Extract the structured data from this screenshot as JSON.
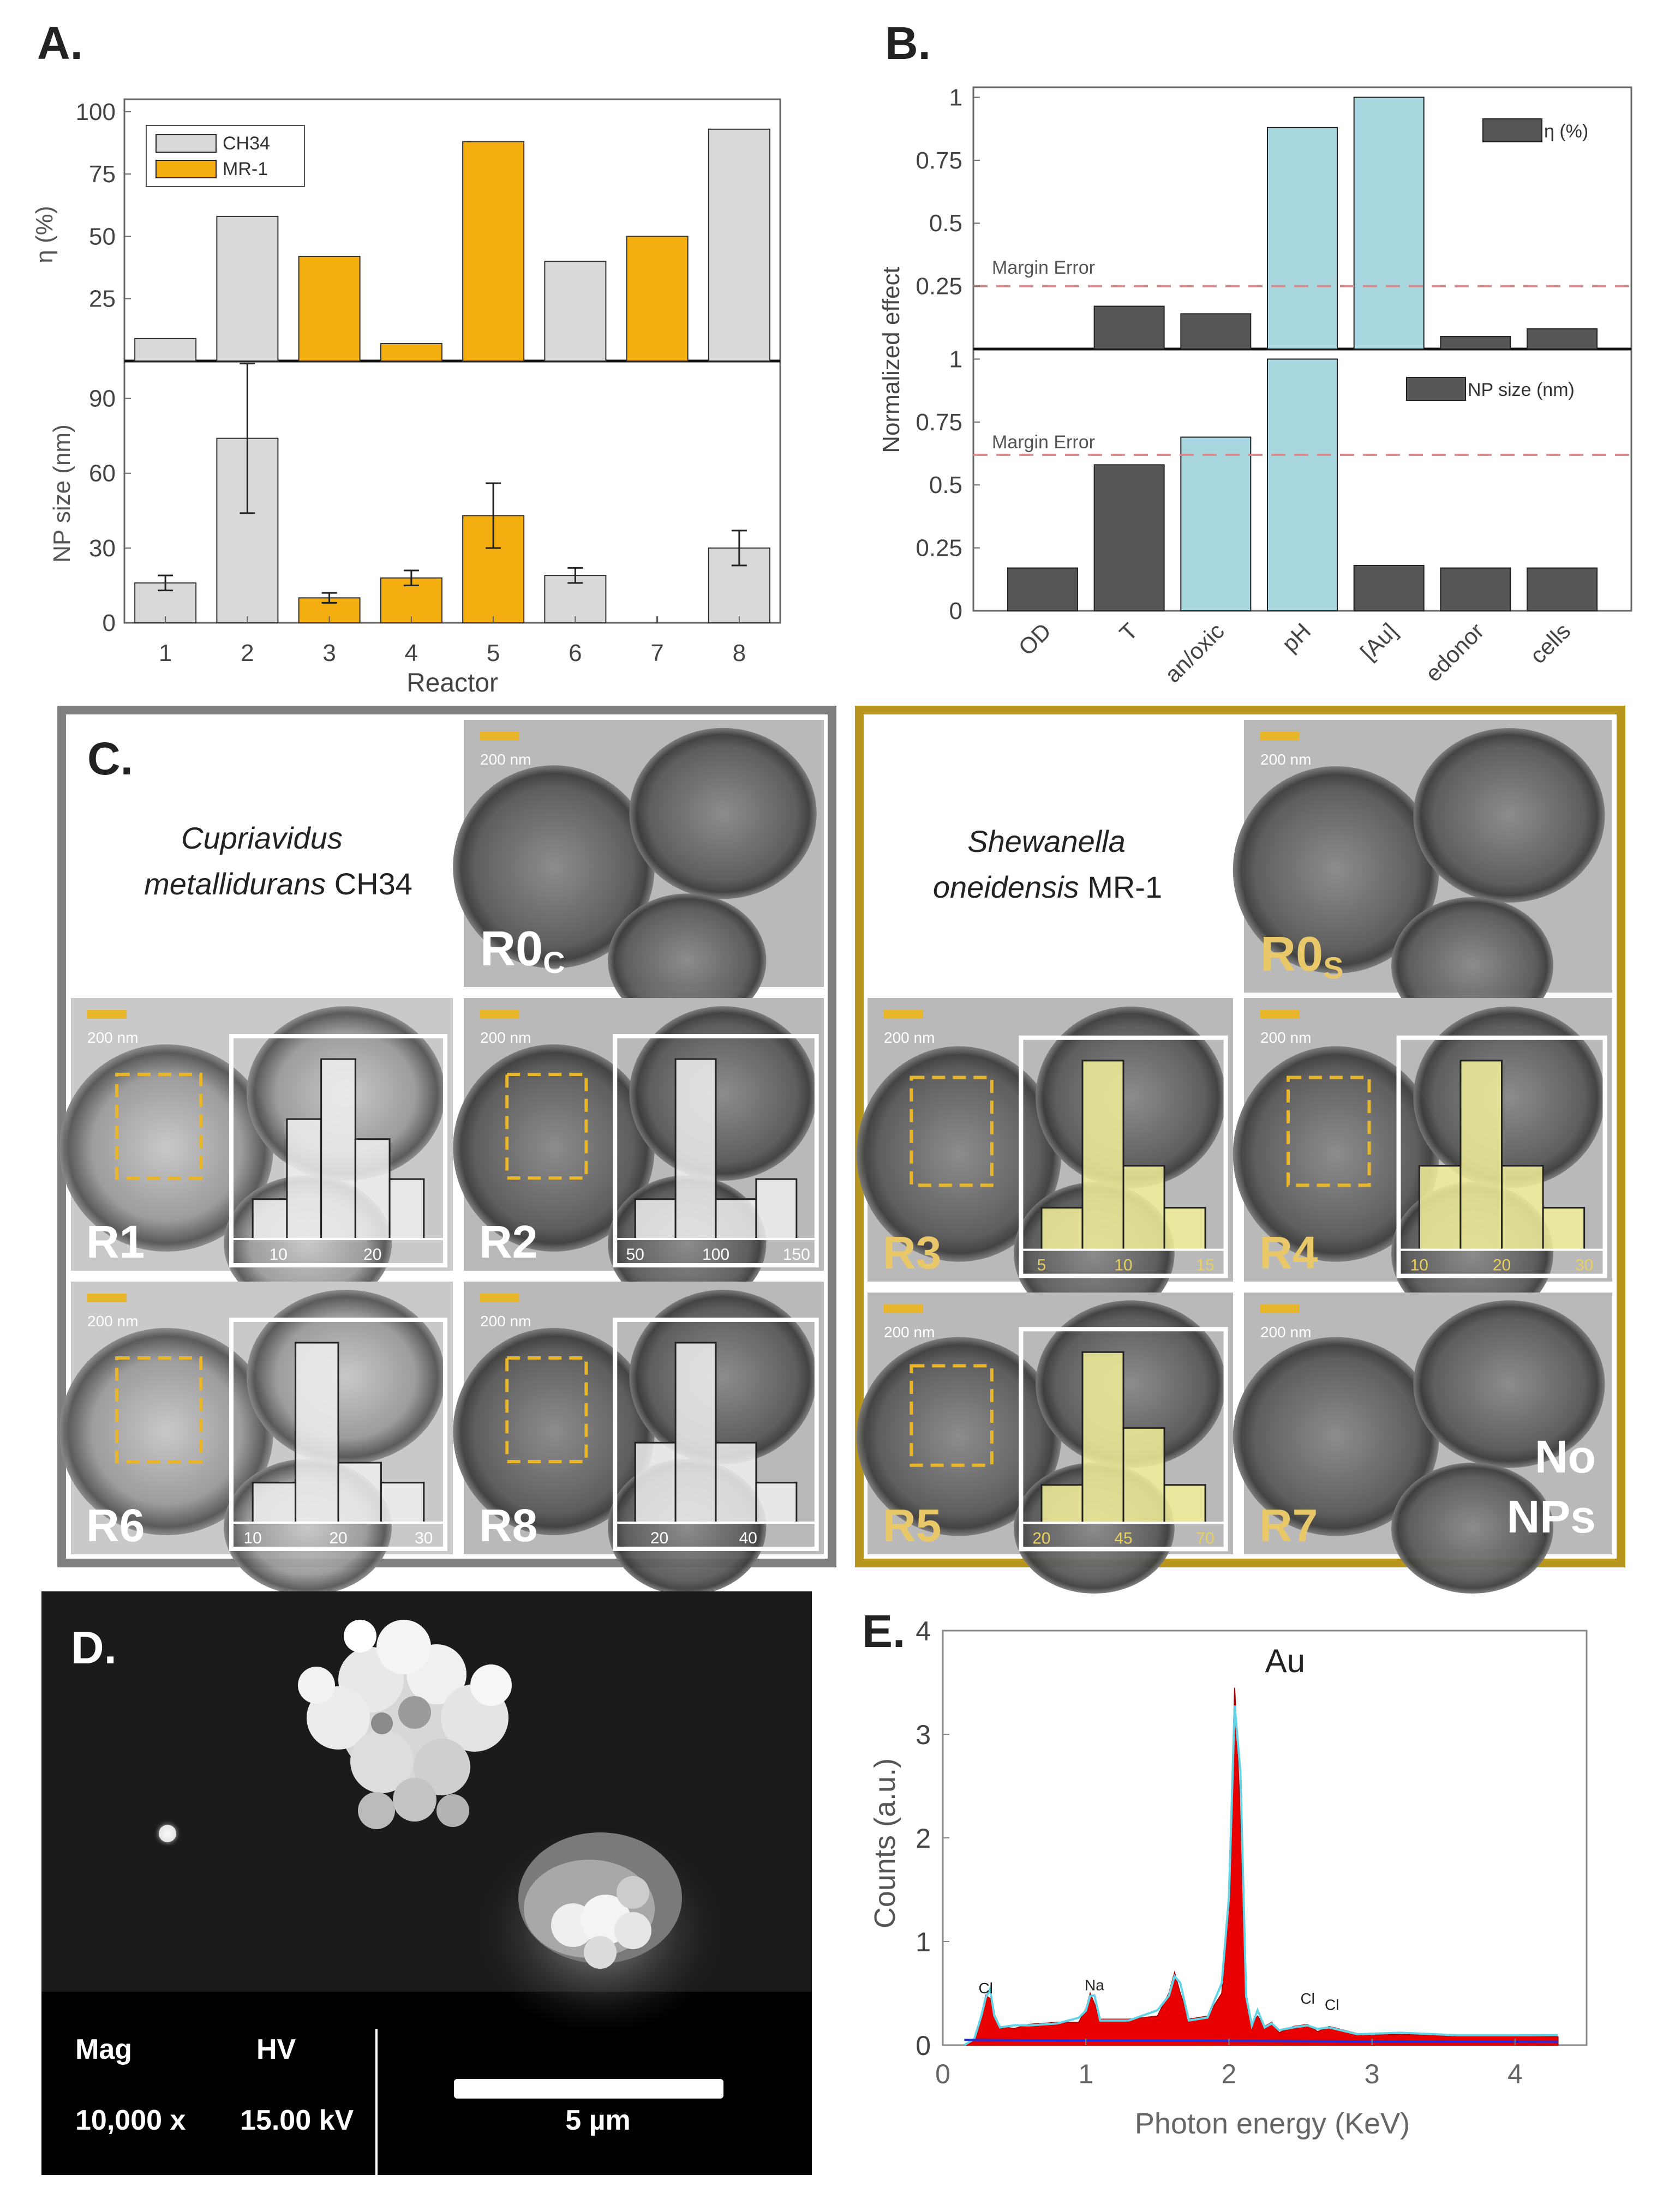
{
  "colors": {
    "ch34": "#d9d9d9",
    "mr1": "#f4ae0f",
    "dark_bar": "#565656",
    "light_bar": "#a9d7e0",
    "margin_line": "#d88a8a",
    "frame_c1": "#7f7f7f",
    "frame_c2": "#b8961e",
    "hist_yellow": "#f2f09a",
    "spectrum_fill": "#e80000",
    "spectrum_line": "#62d4e6",
    "spectrum_baseline": "#1f2ee0"
  },
  "panelA": {
    "label": "A.",
    "xlabel": "Reactor",
    "legend": [
      "CH34",
      "MR-1"
    ],
    "chart_data": [
      {
        "type": "bar",
        "ylabel": "η (%)",
        "categories": [
          "1",
          "2",
          "3",
          "4",
          "5",
          "6",
          "7",
          "8"
        ],
        "values": [
          9,
          58,
          42,
          7,
          88,
          40,
          50,
          93
        ],
        "strain": [
          "CH34",
          "CH34",
          "MR-1",
          "MR-1",
          "MR-1",
          "CH34",
          "MR-1",
          "CH34"
        ],
        "ylim": [
          0,
          105
        ],
        "yticks": [
          "25",
          "50",
          "75",
          "100"
        ]
      },
      {
        "type": "bar",
        "ylabel": "NP size (nm)",
        "categories": [
          "1",
          "2",
          "3",
          "4",
          "5",
          "6",
          "7",
          "8"
        ],
        "values": [
          16,
          74,
          10,
          18,
          43,
          19,
          0,
          30
        ],
        "errors": [
          3,
          30,
          2,
          3,
          13,
          3,
          0,
          7
        ],
        "strain": [
          "CH34",
          "CH34",
          "MR-1",
          "MR-1",
          "MR-1",
          "CH34",
          "MR-1",
          "CH34"
        ],
        "ylim": [
          0,
          105
        ],
        "yticks": [
          "0",
          "30",
          "60",
          "90"
        ]
      }
    ]
  },
  "panelB": {
    "label": "B.",
    "ylabel": "Normalized effect",
    "categories": [
      "OD",
      "T",
      "an/oxic",
      "pH",
      "[Au]",
      "edonor",
      "cells"
    ],
    "margin_label": "Margin Error",
    "chart_data": [
      {
        "type": "bar",
        "legend": "η (%)",
        "values": [
          0,
          0.17,
          0.14,
          0.88,
          1.0,
          0.05,
          0.08
        ],
        "highlight": [
          false,
          false,
          false,
          true,
          true,
          false,
          false
        ],
        "margin": 0.25,
        "ylim": [
          0,
          1.04
        ],
        "yticks": [
          "0.25",
          "0.5",
          "0.75",
          "1"
        ]
      },
      {
        "type": "bar",
        "legend": "NP size (nm)",
        "values": [
          0.17,
          0.58,
          0.69,
          1.0,
          0.18,
          0.17,
          0.17
        ],
        "highlight": [
          false,
          false,
          true,
          true,
          false,
          false,
          false
        ],
        "margin": 0.62,
        "ylim": [
          0,
          1.04
        ],
        "yticks": [
          "0",
          "0.25",
          "0.5",
          "0.75",
          "1"
        ]
      }
    ]
  },
  "panelC": {
    "label": "C.",
    "scale_bar": "200 nm",
    "species1": {
      "genus": "Cupriavidus",
      "species": "metallidurans",
      "strain": "CH34"
    },
    "species2": {
      "genus": "Shewanella",
      "species": "oneidensis",
      "strain": "MR-1"
    },
    "tiles": {
      "r0c": {
        "main": "R0",
        "sub": "C"
      },
      "r0s": {
        "main": "R0",
        "sub": "S"
      },
      "r1": {
        "label": "R1",
        "hist_ticks": [
          "10",
          "20"
        ],
        "hist_values": [
          2,
          6,
          9,
          5,
          3
        ]
      },
      "r2": {
        "label": "R2",
        "hist_ticks": [
          "50",
          "100",
          "150"
        ],
        "hist_values": [
          2,
          9,
          2,
          3
        ]
      },
      "r3": {
        "label": "R3",
        "hist_ticks": [
          "5",
          "10",
          "15"
        ],
        "hist_values": [
          2,
          9,
          4,
          2
        ]
      },
      "r4": {
        "label": "R4",
        "hist_ticks": [
          "10",
          "20",
          "30"
        ],
        "hist_values": [
          4,
          9,
          4,
          2
        ]
      },
      "r5": {
        "label": "R5",
        "hist_ticks": [
          "20",
          "45",
          "70"
        ],
        "hist_values": [
          2,
          9,
          5,
          2
        ]
      },
      "r6": {
        "label": "R6",
        "hist_ticks": [
          "10",
          "20",
          "30"
        ],
        "hist_values": [
          2,
          9,
          3,
          2
        ]
      },
      "r7": {
        "label": "R7",
        "no_nps": [
          "No",
          "NPs"
        ]
      },
      "r8": {
        "label": "R8",
        "hist_ticks": [
          "20",
          "40"
        ],
        "hist_values": [
          4,
          9,
          4,
          2
        ]
      }
    }
  },
  "panelD": {
    "label": "D.",
    "mag_label": "Mag",
    "mag_value": "10,000 x",
    "hv_label": "HV",
    "hv_value": "15.00 kV",
    "scale_text": "5 µm"
  },
  "panelE": {
    "label": "E.",
    "chart_data": {
      "type": "area",
      "xlabel": "Photon energy (KeV)",
      "ylabel": "Counts (a.u.)",
      "xlim": [
        0,
        4.5
      ],
      "ylim": [
        0,
        4
      ],
      "xticks": [
        "0",
        "1",
        "2",
        "3",
        "4"
      ],
      "yticks": [
        "0",
        "1",
        "2",
        "3",
        "4"
      ],
      "x": [
        0.15,
        0.22,
        0.27,
        0.3,
        0.33,
        0.36,
        0.4,
        0.5,
        0.6,
        0.8,
        0.95,
        1.0,
        1.03,
        1.06,
        1.1,
        1.3,
        1.5,
        1.58,
        1.62,
        1.66,
        1.72,
        1.85,
        1.95,
        2.0,
        2.04,
        2.08,
        2.12,
        2.16,
        2.2,
        2.25,
        2.3,
        2.35,
        2.45,
        2.55,
        2.62,
        2.7,
        2.9,
        3.2,
        3.6,
        4.0,
        4.3
      ],
      "y": [
        0,
        0.05,
        0.3,
        0.48,
        0.45,
        0.3,
        0.18,
        0.16,
        0.2,
        0.22,
        0.22,
        0.35,
        0.5,
        0.4,
        0.25,
        0.25,
        0.28,
        0.5,
        0.7,
        0.5,
        0.25,
        0.28,
        0.5,
        1.5,
        3.45,
        2.2,
        0.5,
        0.2,
        0.28,
        0.18,
        0.22,
        0.12,
        0.18,
        0.2,
        0.13,
        0.18,
        0.11,
        0.1,
        0.1,
        0.1,
        0.08
      ],
      "annotations": [
        {
          "text": "Au",
          "x": 2.1,
          "y": 3.6
        },
        {
          "text": "Cl",
          "x": 0.3,
          "y": 0.5
        },
        {
          "text": "Na",
          "x": 1.06,
          "y": 0.53
        },
        {
          "text": "Cl",
          "x": 2.55,
          "y": 0.4
        },
        {
          "text": "Cl",
          "x": 2.72,
          "y": 0.34
        }
      ]
    }
  }
}
